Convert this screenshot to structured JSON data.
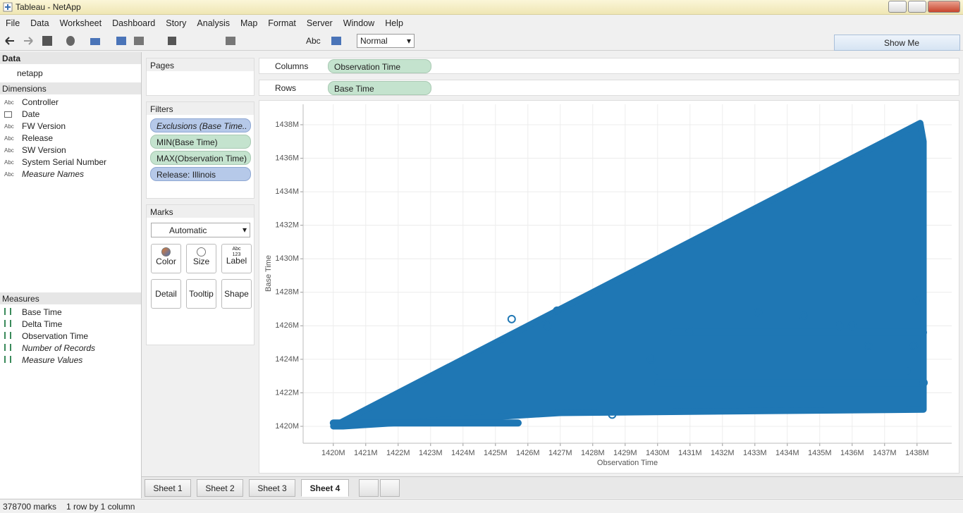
{
  "window": {
    "title": "Tableau - NetApp"
  },
  "menu": [
    "File",
    "Data",
    "Worksheet",
    "Dashboard",
    "Story",
    "Analysis",
    "Map",
    "Format",
    "Server",
    "Window",
    "Help"
  ],
  "toolbar": {
    "label_button": "Abc",
    "fit": "Normal",
    "show_me": "Show Me"
  },
  "data_pane": {
    "header": "Data",
    "source": "netapp",
    "dimensions_header": "Dimensions",
    "dimensions": [
      {
        "icon": "Abc",
        "name": "Controller"
      },
      {
        "icon": null,
        "name": "Date"
      },
      {
        "icon": "Abc",
        "name": "FW Version"
      },
      {
        "icon": "Abc",
        "name": "Release"
      },
      {
        "icon": "Abc",
        "name": "SW Version"
      },
      {
        "icon": "Abc",
        "name": "System Serial Number"
      },
      {
        "icon": "Abc",
        "name": "Measure Names"
      }
    ],
    "measures_header": "Measures",
    "measures": [
      "Base Time",
      "Delta Time",
      "Observation Time",
      "Number of Records",
      "Measure Values"
    ]
  },
  "pages": {
    "header": "Pages"
  },
  "filters": {
    "header": "Filters",
    "items": [
      "Exclusions (Base Time..",
      "MIN(Base Time)",
      "MAX(Observation Time)",
      "Release: Illinois"
    ]
  },
  "marks": {
    "header": "Marks",
    "mark_type": "Automatic",
    "label_icon": "Abc 123",
    "buttons": [
      "Color",
      "Size",
      "Label",
      "Detail",
      "Tooltip",
      "Shape"
    ]
  },
  "shelves": {
    "columns_label": "Columns",
    "columns_pill": "Observation Time",
    "rows_label": "Rows",
    "rows_pill": "Base Time"
  },
  "tabs": [
    "Sheet 1",
    "Sheet 2",
    "Sheet 3",
    "Sheet 4"
  ],
  "status": {
    "marks": "378700 marks",
    "layout": "1 row by 1 column"
  },
  "chart_data": {
    "type": "scatter",
    "x_label": "Observation Time",
    "y_label": "Base Time",
    "color": "#1f77b4",
    "grid": true,
    "xlim": [
      1419.07,
      1439.07
    ],
    "ylim": [
      1418.99,
      1439.22
    ],
    "xticks": [
      {
        "value": 1420,
        "label": "1420M"
      },
      {
        "value": 1421,
        "label": "1421M"
      },
      {
        "value": 1422,
        "label": "1422M"
      },
      {
        "value": 1423,
        "label": "1423M"
      },
      {
        "value": 1424,
        "label": "1424M"
      },
      {
        "value": 1425,
        "label": "1425M"
      },
      {
        "value": 1426,
        "label": "1426M"
      },
      {
        "value": 1427,
        "label": "1427M"
      },
      {
        "value": 1428,
        "label": "1428M"
      },
      {
        "value": 1429,
        "label": "1429M"
      },
      {
        "value": 1430,
        "label": "1430M"
      },
      {
        "value": 1431,
        "label": "1431M"
      },
      {
        "value": 1432,
        "label": "1432M"
      },
      {
        "value": 1433,
        "label": "1433M"
      },
      {
        "value": 1434,
        "label": "1434M"
      },
      {
        "value": 1435,
        "label": "1435M"
      },
      {
        "value": 1436,
        "label": "1436M"
      },
      {
        "value": 1437,
        "label": "1437M"
      },
      {
        "value": 1438,
        "label": "1438M"
      }
    ],
    "yticks": [
      {
        "value": 1420,
        "label": "1420M"
      },
      {
        "value": 1422,
        "label": "1422M"
      },
      {
        "value": 1424,
        "label": "1424M"
      },
      {
        "value": 1426,
        "label": "1426M"
      },
      {
        "value": 1428,
        "label": "1428M"
      },
      {
        "value": 1430,
        "label": "1430M"
      },
      {
        "value": 1432,
        "label": "1432M"
      },
      {
        "value": 1434,
        "label": "1434M"
      },
      {
        "value": 1436,
        "label": "1436M"
      },
      {
        "value": 1438,
        "label": "1438M"
      }
    ],
    "region": {
      "x": [
        1420,
        1438.1,
        1438.2,
        1438.2,
        1427,
        1420.3
      ],
      "y": [
        1420,
        1438.1,
        1437,
        1421,
        1420.8,
        1420
      ]
    },
    "bands": [
      {
        "x": [
          1420,
          1425.7
        ],
        "y": [
          1420.2,
          1420.2
        ]
      },
      {
        "x": [
          1430,
          1438.2
        ],
        "y": [
          1422.6,
          1422.6
        ]
      },
      {
        "x": [
          1430,
          1437.7
        ],
        "y": [
          1423.3,
          1423.3
        ]
      },
      {
        "x": [
          1430.5,
          1438.2
        ],
        "y": [
          1425.6,
          1425.6
        ]
      }
    ],
    "points": {
      "x": [
        1428.6,
        1429.8,
        1431.0,
        1433.1,
        1434.5,
        1436.5,
        1437.9,
        1438.2,
        1435.6,
        1436.0,
        1426.9,
        1426.6,
        1425.5,
        1438.0
      ],
      "y": [
        1420.7,
        1424.0,
        1425.7,
        1426.8,
        1426.6,
        1424.8,
        1424.8,
        1422.6,
        1426.0,
        1426.0,
        1426.9,
        1426.0,
        1426.4,
        1427.5
      ]
    }
  }
}
